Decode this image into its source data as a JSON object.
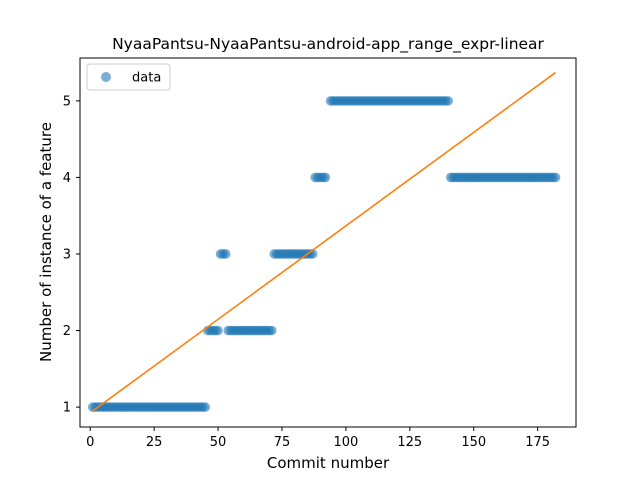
{
  "chart_data": {
    "type": "scatter",
    "title": "NyaaPantsu-NyaaPantsu-android-app_range_expr-linear",
    "xlabel": "Commit number",
    "ylabel": "Number of instance of a feature",
    "xlim": [
      -4,
      190
    ],
    "ylim": [
      0.74,
      5.56
    ],
    "x_ticks": [
      0,
      25,
      50,
      75,
      100,
      125,
      150,
      175
    ],
    "y_ticks": [
      1,
      2,
      3,
      4,
      5
    ],
    "legend": {
      "position": "top-left",
      "entries": [
        "data"
      ]
    },
    "grid": false,
    "colors": {
      "data": "#1f77b4",
      "fit": "#ff7f0e"
    },
    "series": [
      {
        "name": "data",
        "kind": "scatter",
        "segments": [
          {
            "x_start": 1,
            "x_end": 45,
            "y": 1
          },
          {
            "x_start": 46,
            "x_end": 50,
            "y": 2
          },
          {
            "x_start": 51,
            "x_end": 53,
            "y": 3
          },
          {
            "x_start": 54,
            "x_end": 71,
            "y": 2
          },
          {
            "x_start": 72,
            "x_end": 87,
            "y": 3
          },
          {
            "x_start": 88,
            "x_end": 92,
            "y": 4
          },
          {
            "x_start": 94,
            "x_end": 140,
            "y": 5
          },
          {
            "x_start": 141,
            "x_end": 182,
            "y": 4
          }
        ]
      },
      {
        "kind": "line",
        "points": [
          [
            1,
            0.95
          ],
          [
            182,
            5.37
          ]
        ]
      }
    ]
  }
}
